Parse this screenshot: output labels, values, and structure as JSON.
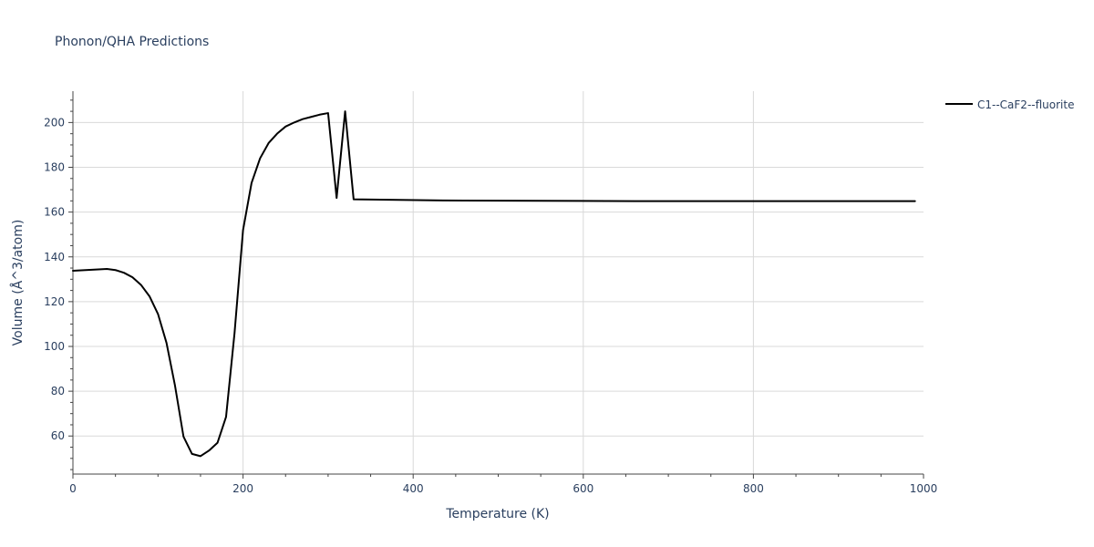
{
  "chart_data": {
    "type": "line",
    "title": "Phonon/QHA Predictions",
    "xlabel": "Temperature (K)",
    "ylabel": "Volume (Å^3/atom)",
    "xlim": [
      0,
      1000
    ],
    "ylim": [
      43,
      214
    ],
    "x_ticks": [
      0,
      200,
      400,
      600,
      800,
      1000
    ],
    "y_ticks": [
      60,
      80,
      100,
      120,
      140,
      160,
      180,
      200
    ],
    "grid": true,
    "legend_position": "top-right, outside plot",
    "series": [
      {
        "name": "C1--CaF2--fluorite",
        "color": "#000000",
        "x": [
          0,
          10,
          20,
          30,
          40,
          50,
          60,
          70,
          80,
          90,
          100,
          110,
          120,
          130,
          140,
          150,
          160,
          170,
          180,
          190,
          200,
          210,
          220,
          230,
          240,
          250,
          260,
          270,
          280,
          290,
          300,
          310,
          320,
          330,
          435,
          660,
          990
        ],
        "y": [
          133.8,
          134.0,
          134.2,
          134.4,
          134.6,
          134.1,
          132.9,
          130.9,
          127.5,
          122.4,
          114.5,
          101.6,
          82.5,
          59.7,
          52.0,
          51.0,
          53.5,
          57.0,
          68.5,
          106.0,
          152.0,
          173.0,
          184.0,
          190.8,
          195.0,
          198.2,
          200.0,
          201.5,
          202.5,
          203.5,
          204.2,
          166.3,
          205.0,
          165.7,
          165.2,
          164.9,
          164.9
        ]
      }
    ]
  }
}
